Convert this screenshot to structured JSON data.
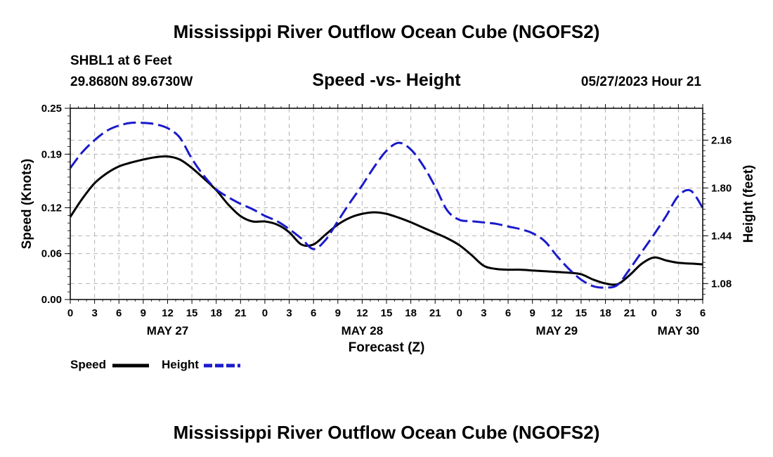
{
  "header": {
    "title": "Mississippi River Outflow Ocean Cube (NGOFS2)",
    "station": "SHBL1 at 6 Feet",
    "coordinates": "29.8680N  89.6730W",
    "subtitle": "Speed -vs- Height",
    "datetime": "05/27/2023 Hour 21"
  },
  "footer": {
    "title": "Mississippi River Outflow Ocean Cube (NGOFS2)"
  },
  "legend": {
    "speed_label": "Speed",
    "height_label": "Height"
  },
  "colors": {
    "speed": "#000000",
    "height": "#1a1acc",
    "grid": "#b4b4b4"
  },
  "chart_data": {
    "type": "line",
    "title": "Speed -vs- Height",
    "xlabel": "Forecast (Z)",
    "ylabel": "Speed (Knots)",
    "y2label": "Height (feet)",
    "x_unit": "hours since May 27 00Z",
    "xlim": [
      0,
      78
    ],
    "ylim": [
      0,
      0.25
    ],
    "y2lim": [
      0.96,
      2.4
    ],
    "x_ticks": [
      0,
      3,
      6,
      9,
      12,
      15,
      18,
      21,
      24,
      27,
      30,
      33,
      36,
      39,
      42,
      45,
      48,
      51,
      54,
      57,
      60,
      63,
      66,
      69,
      72,
      75,
      78
    ],
    "x_tick_labels": [
      "0",
      "3",
      "6",
      "9",
      "12",
      "15",
      "18",
      "21",
      "0",
      "3",
      "6",
      "9",
      "12",
      "15",
      "18",
      "21",
      "0",
      "3",
      "6",
      "9",
      "12",
      "15",
      "18",
      "21",
      "0",
      "3",
      "6"
    ],
    "date_labels": [
      {
        "x": 12,
        "label": "MAY 27"
      },
      {
        "x": 36,
        "label": "MAY 28"
      },
      {
        "x": 60,
        "label": "MAY 29"
      },
      {
        "x": 75,
        "label": "MAY 30"
      }
    ],
    "y_ticks": [
      0.0,
      0.06,
      0.12,
      0.19,
      0.25
    ],
    "y_tick_labels": [
      "0.00",
      "0.06",
      "0.12",
      "0.19",
      "0.25"
    ],
    "y2_ticks": [
      1.08,
      1.44,
      1.8,
      2.16
    ],
    "y2_tick_labels": [
      "1.08",
      "1.44",
      "1.80",
      "2.16"
    ],
    "grid": true,
    "legend_position": "bottom-left",
    "series": [
      {
        "name": "Speed",
        "axis": "left",
        "style": "solid",
        "x": [
          0,
          1.5,
          3,
          4.5,
          6,
          7.5,
          9,
          10.5,
          12,
          13.5,
          15,
          16.5,
          18,
          19.5,
          21,
          22.5,
          24,
          25.5,
          27,
          28.5,
          30,
          31.5,
          33,
          34.5,
          36,
          37.5,
          39,
          40.5,
          42,
          43.5,
          45,
          46.5,
          48,
          49.5,
          51,
          52.5,
          54,
          55.5,
          57,
          58.5,
          60,
          61.5,
          63,
          64.5,
          66,
          67.5,
          69,
          70.5,
          72,
          73.5,
          75,
          76.5,
          78
        ],
        "values": [
          0.108,
          0.132,
          0.152,
          0.165,
          0.174,
          0.179,
          0.183,
          0.186,
          0.187,
          0.183,
          0.172,
          0.158,
          0.143,
          0.124,
          0.109,
          0.102,
          0.102,
          0.098,
          0.088,
          0.072,
          0.072,
          0.085,
          0.098,
          0.107,
          0.112,
          0.114,
          0.112,
          0.107,
          0.101,
          0.094,
          0.087,
          0.08,
          0.071,
          0.058,
          0.044,
          0.04,
          0.039,
          0.039,
          0.038,
          0.037,
          0.036,
          0.035,
          0.033,
          0.026,
          0.021,
          0.02,
          0.032,
          0.047,
          0.055,
          0.051,
          0.048,
          0.047,
          0.046
        ]
      },
      {
        "name": "Height",
        "axis": "right",
        "style": "dashed",
        "x": [
          0,
          1.5,
          3,
          4.5,
          6,
          7.5,
          9,
          10.5,
          12,
          13.5,
          15,
          16.5,
          18,
          19.5,
          21,
          22.5,
          24,
          25.5,
          27,
          28.5,
          30,
          31.5,
          33,
          34.5,
          36,
          37.5,
          39,
          40.5,
          42,
          43.5,
          45,
          46.5,
          48,
          49.5,
          51,
          52.5,
          54,
          55.5,
          57,
          58.5,
          60,
          61.5,
          63,
          64.5,
          66,
          67.5,
          69,
          70.5,
          72,
          73.5,
          75,
          76.5,
          78
        ],
        "values": [
          1.95,
          2.07,
          2.16,
          2.23,
          2.27,
          2.29,
          2.29,
          2.28,
          2.25,
          2.18,
          2.02,
          1.89,
          1.79,
          1.73,
          1.68,
          1.64,
          1.59,
          1.55,
          1.49,
          1.42,
          1.34,
          1.41,
          1.55,
          1.69,
          1.82,
          1.96,
          2.08,
          2.14,
          2.09,
          1.97,
          1.81,
          1.63,
          1.56,
          1.55,
          1.54,
          1.53,
          1.51,
          1.49,
          1.46,
          1.4,
          1.29,
          1.19,
          1.11,
          1.06,
          1.05,
          1.07,
          1.19,
          1.32,
          1.45,
          1.59,
          1.74,
          1.78,
          1.65
        ]
      }
    ]
  }
}
